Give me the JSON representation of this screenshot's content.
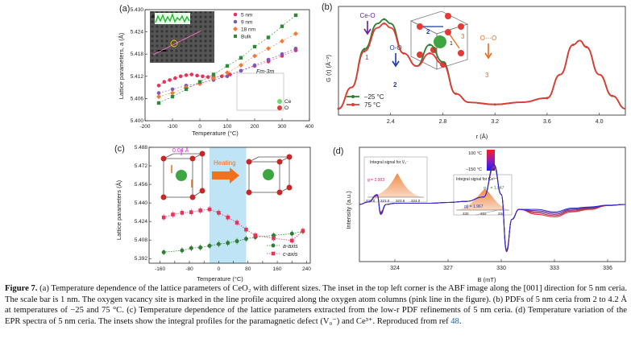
{
  "panels": {
    "a": {
      "label": "(a)",
      "ylabel": "Lattice parameters, a (Å)",
      "xlabel": "Temperature (°C)",
      "space_group": "Fm-3m",
      "structure_legend": [
        "Ce",
        "O"
      ],
      "inset_letter": "a",
      "colors": {
        "5nm": "#e8325a",
        "9nm": "#7d5ab8",
        "18nm": "#f07a3a",
        "bulk": "#2e8a38"
      }
    },
    "b": {
      "label": "(b)",
      "ylabel": "G (r) (Å⁻²)",
      "xlabel": "r (Å)",
      "annotations": [
        "Ce-O",
        "O-O",
        "O···O",
        "1",
        "2",
        "3"
      ],
      "structure_numbers": [
        "1",
        "2",
        "3"
      ]
    },
    "c": {
      "label": "(c)",
      "ylabel": "Lattice parameters (Å)",
      "xlabel": "Temperature (°C)",
      "arrow_label": "0.04 Å",
      "heating_label": "Heating"
    },
    "d": {
      "label": "(d)",
      "ylabel": "Intensity (a.u.)",
      "xlabel": "B (mT)",
      "colorbar_labels": [
        "100 °C",
        "–150 °C"
      ],
      "inset1": {
        "title": "Integral signal for V₀⁻",
        "g": "g = 2.003",
        "ticks": [
          "322.5",
          "323.0",
          "323.5",
          "324.0"
        ]
      },
      "inset2": {
        "title": "Integral signal for Ce³⁺",
        "g1": "g⊥ = 1.947",
        "g2": "g∥ = 1.967",
        "ticks": [
          "330",
          "332",
          "334"
        ]
      }
    }
  },
  "caption": {
    "figure_label": "Figure 7.",
    "text": "(a) Temperature dependence of the lattice parameters of CeO₂ with different sizes. The inset in the top left corner is the ABF image along the [001] direction for 5 nm ceria. The scale bar is 1 nm. The oxygen vacancy site is marked in the line profile acquired along the oxygen atom columns (pink line in the figure). (b) PDFs of 5 nm ceria from 2 to 4.2 Å at temperatures of −25 and 75 °C. (c) Temperature dependence of the lattice parameters extracted from the low-r PDF refinements of 5 nm ceria. (d) Temperature variation of the EPR spectra of 5 nm ceria. The insets show the integral profiles for the paramagnetic defect (V₀⁻) and Ce³⁺. Reproduced from ref",
    "ref": "48",
    "end": "."
  },
  "chart_data": [
    {
      "type": "scatter",
      "xlabel": "Temperature (°C)",
      "ylabel": "Lattice parameters, a (Å)",
      "xlim": [
        -200,
        400
      ],
      "ylim": [
        5.4,
        5.43
      ],
      "xticks": [
        "-200",
        "-100",
        "0",
        "100",
        "200",
        "300",
        "400"
      ],
      "yticks": [
        "5.400",
        "5.406",
        "5.412",
        "5.418",
        "5.424",
        "5.430"
      ],
      "legend": "top-right",
      "series": [
        {
          "name": "5 nm",
          "color": "#e8325a",
          "x": [
            -150,
            -130,
            -110,
            -90,
            -70,
            -50,
            -30,
            -10,
            10,
            30,
            50,
            80,
            110,
            150,
            200,
            250,
            300,
            350
          ],
          "y": [
            5.4095,
            5.4105,
            5.411,
            5.4115,
            5.412,
            5.4123,
            5.4125,
            5.4122,
            5.412,
            5.4118,
            5.4117,
            5.412,
            5.4125,
            5.4135,
            5.4148,
            5.416,
            5.4175,
            5.419
          ]
        },
        {
          "name": "9 nm",
          "color": "#7d5ab8",
          "x": [
            -150,
            -100,
            -50,
            0,
            50,
            100,
            150,
            200,
            250,
            300,
            350
          ],
          "y": [
            5.4075,
            5.4085,
            5.4095,
            5.41,
            5.411,
            5.412,
            5.4135,
            5.415,
            5.4165,
            5.418,
            5.4195
          ]
        },
        {
          "name": "18 nm",
          "color": "#f07a3a",
          "x": [
            -150,
            -100,
            -50,
            0,
            50,
            100,
            150,
            200,
            250,
            300,
            350
          ],
          "y": [
            5.4065,
            5.4075,
            5.409,
            5.41,
            5.4115,
            5.413,
            5.415,
            5.4175,
            5.4195,
            5.4215,
            5.4235
          ]
        },
        {
          "name": "Bulk",
          "color": "#2e8a38",
          "x": [
            -150,
            -100,
            -50,
            0,
            50,
            100,
            150,
            200,
            250,
            300,
            350
          ],
          "y": [
            5.4048,
            5.4065,
            5.4085,
            5.4105,
            5.4125,
            5.4148,
            5.417,
            5.42,
            5.4225,
            5.4255,
            5.4285
          ]
        }
      ]
    },
    {
      "type": "line",
      "xlabel": "r (Å)",
      "ylabel": "G (r) (Å⁻²)",
      "xlim": [
        2.0,
        4.2
      ],
      "xticks": [
        "2.4",
        "2.8",
        "3.2",
        "3.6",
        "4.0"
      ],
      "legend": "bottom-left",
      "series": [
        {
          "name": "–25 °C",
          "color": "#2e7d32",
          "x": [
            2.0,
            2.1,
            2.2,
            2.3,
            2.35,
            2.4,
            2.5,
            2.6,
            2.7,
            2.8,
            2.9,
            3.0,
            3.2,
            3.4,
            3.6,
            3.7,
            3.8,
            3.85,
            3.9,
            4.0,
            4.1,
            4.2
          ],
          "y": [
            -1.6,
            -0.6,
            1.2,
            2.4,
            2.6,
            2.4,
            1.0,
            0.4,
            1.4,
            0.6,
            -0.9,
            -1.3,
            -1.4,
            -1.3,
            -1.1,
            0.0,
            1.4,
            1.6,
            1.3,
            0.0,
            -1.0,
            -1.6
          ]
        },
        {
          "name": "75 °C",
          "color": "#e53935",
          "x": [
            2.0,
            2.1,
            2.2,
            2.3,
            2.35,
            2.4,
            2.5,
            2.6,
            2.7,
            2.8,
            2.9,
            3.0,
            3.2,
            3.4,
            3.6,
            3.7,
            3.8,
            3.85,
            3.9,
            4.0,
            4.1,
            4.2
          ],
          "y": [
            -1.6,
            -0.6,
            1.1,
            2.2,
            2.4,
            2.2,
            1.0,
            0.4,
            1.0,
            0.5,
            -0.9,
            -1.3,
            -1.4,
            -1.3,
            -1.1,
            0.0,
            1.4,
            1.6,
            1.3,
            0.0,
            -1.0,
            -1.6
          ]
        }
      ]
    },
    {
      "type": "scatter",
      "xlabel": "Temperature (°C)",
      "ylabel": "Lattice parameters (Å)",
      "xlim": [
        -190,
        250
      ],
      "ylim": [
        5.388,
        5.488
      ],
      "xticks": [
        "-160",
        "-120",
        "-80",
        "-40",
        "0",
        "40",
        "80",
        "120",
        "160",
        "200",
        "240"
      ],
      "yticks": [
        "5.392",
        "5.408",
        "5.424",
        "5.440",
        "5.456",
        "5.472",
        "5.488"
      ],
      "legend": "bottom-right",
      "highlight_range": [
        -25,
        75
      ],
      "series": [
        {
          "name": "a-axis",
          "color": "#2e7d32",
          "x": [
            -150,
            -100,
            -75,
            -50,
            -25,
            0,
            25,
            50,
            75,
            100,
            150,
            200,
            230
          ],
          "y": [
            5.3975,
            5.399,
            5.401,
            5.4015,
            5.403,
            5.4045,
            5.4055,
            5.407,
            5.409,
            5.4105,
            5.412,
            5.4135,
            5.4155
          ]
        },
        {
          "name": "c-axis",
          "color": "#e8325a",
          "x": [
            -150,
            -125,
            -100,
            -75,
            -50,
            -25,
            0,
            25,
            50,
            75,
            100,
            150,
            200,
            230
          ],
          "y": [
            5.4275,
            5.43,
            5.4315,
            5.432,
            5.4335,
            5.4345,
            5.4315,
            5.4275,
            5.423,
            5.417,
            5.412,
            5.4095,
            5.4075,
            5.416
          ]
        }
      ]
    },
    {
      "type": "line",
      "xlabel": "B (mT)",
      "ylabel": "Intensity (a.u.)",
      "xlim": [
        322,
        337
      ],
      "xticks": [
        "324",
        "327",
        "330",
        "333",
        "336"
      ],
      "legend": "colorbar",
      "series": [
        {
          "name": "100 °C",
          "color": "#e8302c",
          "x": [
            322,
            322.5,
            323,
            323.2,
            323.5,
            324,
            325,
            326,
            327,
            328,
            329,
            329.6,
            330,
            330.3,
            330.6,
            331,
            332,
            333,
            334,
            335,
            336,
            337
          ],
          "y": [
            0,
            0.1,
            0.35,
            -0.3,
            0.0,
            0.05,
            0.05,
            0.05,
            0.08,
            0.12,
            0.3,
            1.5,
            0.4,
            -1.8,
            -0.6,
            -0.2,
            -0.4,
            -0.5,
            -0.3,
            -0.2,
            -0.05,
            0
          ]
        },
        {
          "name": "–150 °C",
          "color": "#2b2bd0",
          "x": [
            322,
            322.5,
            323,
            323.2,
            323.5,
            324,
            325,
            326,
            327,
            328,
            329,
            329.6,
            330,
            330.3,
            330.6,
            331,
            332,
            333,
            334,
            335,
            336,
            337
          ],
          "y": [
            0,
            0.1,
            0.4,
            -0.4,
            0.0,
            0.05,
            0.05,
            0.05,
            0.08,
            0.12,
            0.3,
            1.6,
            0.4,
            -1.9,
            -0.6,
            -0.2,
            -0.2,
            -0.3,
            -0.15,
            -0.1,
            -0.03,
            0
          ]
        }
      ]
    }
  ]
}
